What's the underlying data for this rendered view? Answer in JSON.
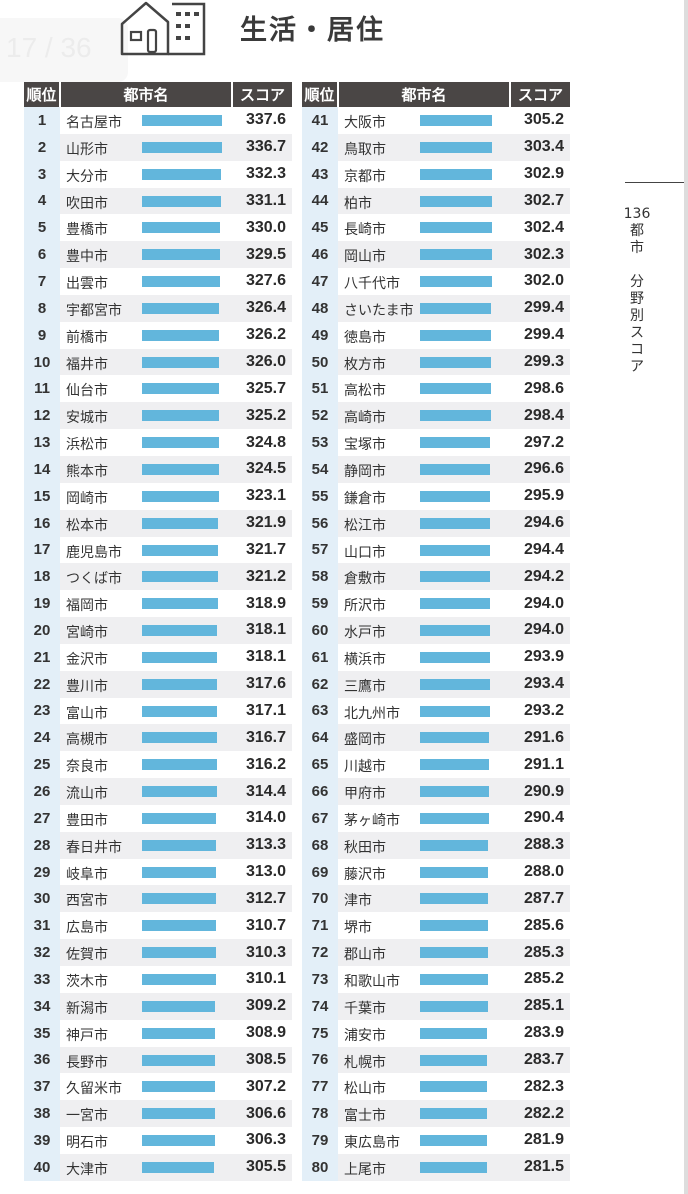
{
  "page_indicator": "17 / 36",
  "title": "生活・居住",
  "icon": "house-building-icon",
  "side_label": {
    "count": "136",
    "chars": [
      "都",
      "市",
      "",
      "分",
      "野",
      "別",
      "ス",
      "コ",
      "ア"
    ]
  },
  "headers": {
    "rank": "順位",
    "city": "都市名",
    "score": "スコア"
  },
  "colors": {
    "bar": "#62b6dc",
    "header": "#4a4645",
    "rank_bg": "#e3eff8"
  },
  "rows": [
    [
      "1",
      "名古屋市",
      "337.6"
    ],
    [
      "2",
      "山形市",
      "336.7"
    ],
    [
      "3",
      "大分市",
      "332.3"
    ],
    [
      "4",
      "吹田市",
      "331.1"
    ],
    [
      "5",
      "豊橋市",
      "330.0"
    ],
    [
      "6",
      "豊中市",
      "329.5"
    ],
    [
      "7",
      "出雲市",
      "327.6"
    ],
    [
      "8",
      "宇都宮市",
      "326.4"
    ],
    [
      "9",
      "前橋市",
      "326.2"
    ],
    [
      "10",
      "福井市",
      "326.0"
    ],
    [
      "11",
      "仙台市",
      "325.7"
    ],
    [
      "12",
      "安城市",
      "325.2"
    ],
    [
      "13",
      "浜松市",
      "324.8"
    ],
    [
      "14",
      "熊本市",
      "324.5"
    ],
    [
      "15",
      "岡崎市",
      "323.1"
    ],
    [
      "16",
      "松本市",
      "321.9"
    ],
    [
      "17",
      "鹿児島市",
      "321.7"
    ],
    [
      "18",
      "つくば市",
      "321.2"
    ],
    [
      "19",
      "福岡市",
      "318.9"
    ],
    [
      "20",
      "宮崎市",
      "318.1"
    ],
    [
      "21",
      "金沢市",
      "318.1"
    ],
    [
      "22",
      "豊川市",
      "317.6"
    ],
    [
      "23",
      "富山市",
      "317.1"
    ],
    [
      "24",
      "高槻市",
      "316.7"
    ],
    [
      "25",
      "奈良市",
      "316.2"
    ],
    [
      "26",
      "流山市",
      "314.4"
    ],
    [
      "27",
      "豊田市",
      "314.0"
    ],
    [
      "28",
      "春日井市",
      "313.3"
    ],
    [
      "29",
      "岐阜市",
      "313.0"
    ],
    [
      "30",
      "西宮市",
      "312.7"
    ],
    [
      "31",
      "広島市",
      "310.7"
    ],
    [
      "32",
      "佐賀市",
      "310.3"
    ],
    [
      "33",
      "茨木市",
      "310.1"
    ],
    [
      "34",
      "新潟市",
      "309.2"
    ],
    [
      "35",
      "神戸市",
      "308.9"
    ],
    [
      "36",
      "長野市",
      "308.5"
    ],
    [
      "37",
      "久留米市",
      "307.2"
    ],
    [
      "38",
      "一宮市",
      "306.6"
    ],
    [
      "39",
      "明石市",
      "306.3"
    ],
    [
      "40",
      "大津市",
      "305.5"
    ],
    [
      "41",
      "大阪市",
      "305.2"
    ],
    [
      "42",
      "鳥取市",
      "303.4"
    ],
    [
      "43",
      "京都市",
      "302.9"
    ],
    [
      "44",
      "柏市",
      "302.7"
    ],
    [
      "45",
      "長崎市",
      "302.4"
    ],
    [
      "46",
      "岡山市",
      "302.3"
    ],
    [
      "47",
      "八千代市",
      "302.0"
    ],
    [
      "48",
      "さいたま市",
      "299.4"
    ],
    [
      "49",
      "徳島市",
      "299.4"
    ],
    [
      "50",
      "枚方市",
      "299.3"
    ],
    [
      "51",
      "高松市",
      "298.6"
    ],
    [
      "52",
      "高崎市",
      "298.4"
    ],
    [
      "53",
      "宝塚市",
      "297.2"
    ],
    [
      "54",
      "静岡市",
      "296.6"
    ],
    [
      "55",
      "鎌倉市",
      "295.9"
    ],
    [
      "56",
      "松江市",
      "294.6"
    ],
    [
      "57",
      "山口市",
      "294.4"
    ],
    [
      "58",
      "倉敷市",
      "294.2"
    ],
    [
      "59",
      "所沢市",
      "294.0"
    ],
    [
      "60",
      "水戸市",
      "294.0"
    ],
    [
      "61",
      "横浜市",
      "293.9"
    ],
    [
      "62",
      "三鷹市",
      "293.4"
    ],
    [
      "63",
      "北九州市",
      "293.2"
    ],
    [
      "64",
      "盛岡市",
      "291.6"
    ],
    [
      "65",
      "川越市",
      "291.1"
    ],
    [
      "66",
      "甲府市",
      "290.9"
    ],
    [
      "67",
      "茅ヶ崎市",
      "290.4"
    ],
    [
      "68",
      "秋田市",
      "288.3"
    ],
    [
      "69",
      "藤沢市",
      "288.0"
    ],
    [
      "70",
      "津市",
      "287.7"
    ],
    [
      "71",
      "堺市",
      "285.6"
    ],
    [
      "72",
      "郡山市",
      "285.3"
    ],
    [
      "73",
      "和歌山市",
      "285.2"
    ],
    [
      "74",
      "千葉市",
      "285.1"
    ],
    [
      "75",
      "浦安市",
      "283.9"
    ],
    [
      "76",
      "札幌市",
      "283.7"
    ],
    [
      "77",
      "松山市",
      "282.3"
    ],
    [
      "78",
      "富士市",
      "282.2"
    ],
    [
      "79",
      "東広島市",
      "281.9"
    ],
    [
      "80",
      "上尾市",
      "281.5"
    ]
  ]
}
